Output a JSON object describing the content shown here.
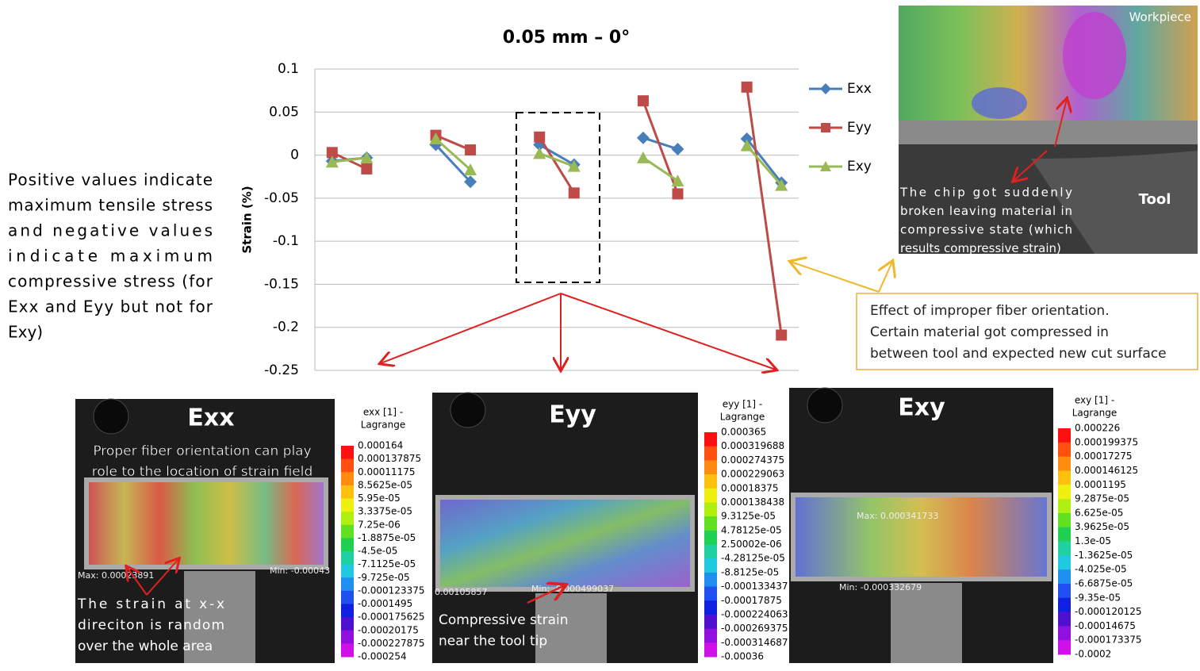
{
  "chart_data": {
    "type": "line",
    "title": "0.05 mm – 0°",
    "y_label": "Strain (%)",
    "categories": [
      null,
      null,
      null,
      null,
      null,
      null,
      null,
      null,
      null,
      null,
      null,
      null,
      null,
      null
    ],
    "series": [
      {
        "name": "Exx",
        "color": "#4a7ebb",
        "marker": "diamond",
        "values": [
          -0.007,
          -0.003,
          null,
          0.012,
          -0.031,
          null,
          0.012,
          -0.011,
          null,
          0.02,
          0.007,
          null,
          0.019,
          -0.032
        ]
      },
      {
        "name": "Eyy",
        "color": "#be4b48",
        "marker": "square",
        "values": [
          0.003,
          -0.016,
          null,
          0.023,
          0.006,
          null,
          0.021,
          -0.044,
          null,
          0.063,
          -0.045,
          null,
          0.079,
          -0.209
        ]
      },
      {
        "name": "Exy",
        "color": "#98b954",
        "marker": "triangle",
        "values": [
          -0.008,
          -0.003,
          null,
          0.019,
          -0.017,
          null,
          0.002,
          -0.013,
          null,
          -0.003,
          -0.03,
          null,
          0.011,
          -0.035
        ]
      }
    ],
    "ylim": [
      -0.25,
      0.1
    ],
    "yticks": [
      0.1,
      0.05,
      0,
      -0.05,
      -0.1,
      -0.15,
      -0.2,
      -0.25
    ],
    "grid": true,
    "legend": "right"
  },
  "note": {
    "lines": [
      "Positive values indicate",
      "maximum tensile stress",
      "and negative values",
      "indicate maximum",
      "compressive stress (for",
      "Exx and Eyy but not for",
      "Exy)"
    ]
  },
  "callout": {
    "lines": [
      "Effect of improper fiber orientation.",
      "Certain material got compressed in",
      "between tool and expected new cut surface"
    ]
  },
  "workpiece_image": {
    "label": "Workpiece",
    "tool_label": "Tool",
    "annotation": [
      "The chip got suddenly",
      "broken leaving material in",
      "compressive state (which",
      "results compressive strain)"
    ]
  },
  "panels": [
    {
      "title": "Exx",
      "colorbar_title": [
        "exx [1] -",
        "Lagrange"
      ],
      "colorbar": [
        "0.000164",
        "0.000137875",
        "0.00011175",
        "8.5625e-05",
        "5.95e-05",
        "3.3375e-05",
        "7.25e-06",
        "-1.8875e-05",
        "-4.5e-05",
        "-7.1125e-05",
        "-9.725e-05",
        "-0.000123375",
        "-0.0001495",
        "-0.000175625",
        "-0.00020175",
        "-0.000227875",
        "-0.000254"
      ],
      "max_label": "Max: 0.00023891",
      "min_label": "Min: -0.00043",
      "top_text": [
        "Proper fiber orientation can play",
        "role to the location of strain field"
      ],
      "bottom_text": [
        "The strain at x-x",
        "direciton is random",
        "over the whole area"
      ]
    },
    {
      "title": "Eyy",
      "colorbar_title": [
        "eyy [1] -",
        "Lagrange"
      ],
      "colorbar": [
        "0.000365",
        "0.000319688",
        "0.000274375",
        "0.000229063",
        "0.00018375",
        "0.000138438",
        "9.3125e-05",
        "4.78125e-05",
        "2.50002e-06",
        "-4.28125e-05",
        "-8.8125e-05",
        "-0.000133437",
        "-0.00017875",
        "-0.000224063",
        "-0.000269375",
        "-0.000314687",
        "-0.00036"
      ],
      "max_label": "0.00105857",
      "min_label": "Min: -0.000499037",
      "bottom_text": [
        "Compressive strain",
        "near the tool tip"
      ]
    },
    {
      "title": "Exy",
      "colorbar_title": [
        "exy [1] -",
        "Lagrange"
      ],
      "colorbar": [
        "0.000226",
        "0.000199375",
        "0.00017275",
        "0.000146125",
        "0.0001195",
        "9.2875e-05",
        "6.625e-05",
        "3.9625e-05",
        "1.3e-05",
        "-1.3625e-05",
        "-4.025e-05",
        "-6.6875e-05",
        "-9.35e-05",
        "-0.000120125",
        "-0.00014675",
        "-0.000173375",
        "-0.0002"
      ],
      "max_label": "Max: 0.000341733",
      "min_label": "Min: -0.000332679"
    }
  ]
}
